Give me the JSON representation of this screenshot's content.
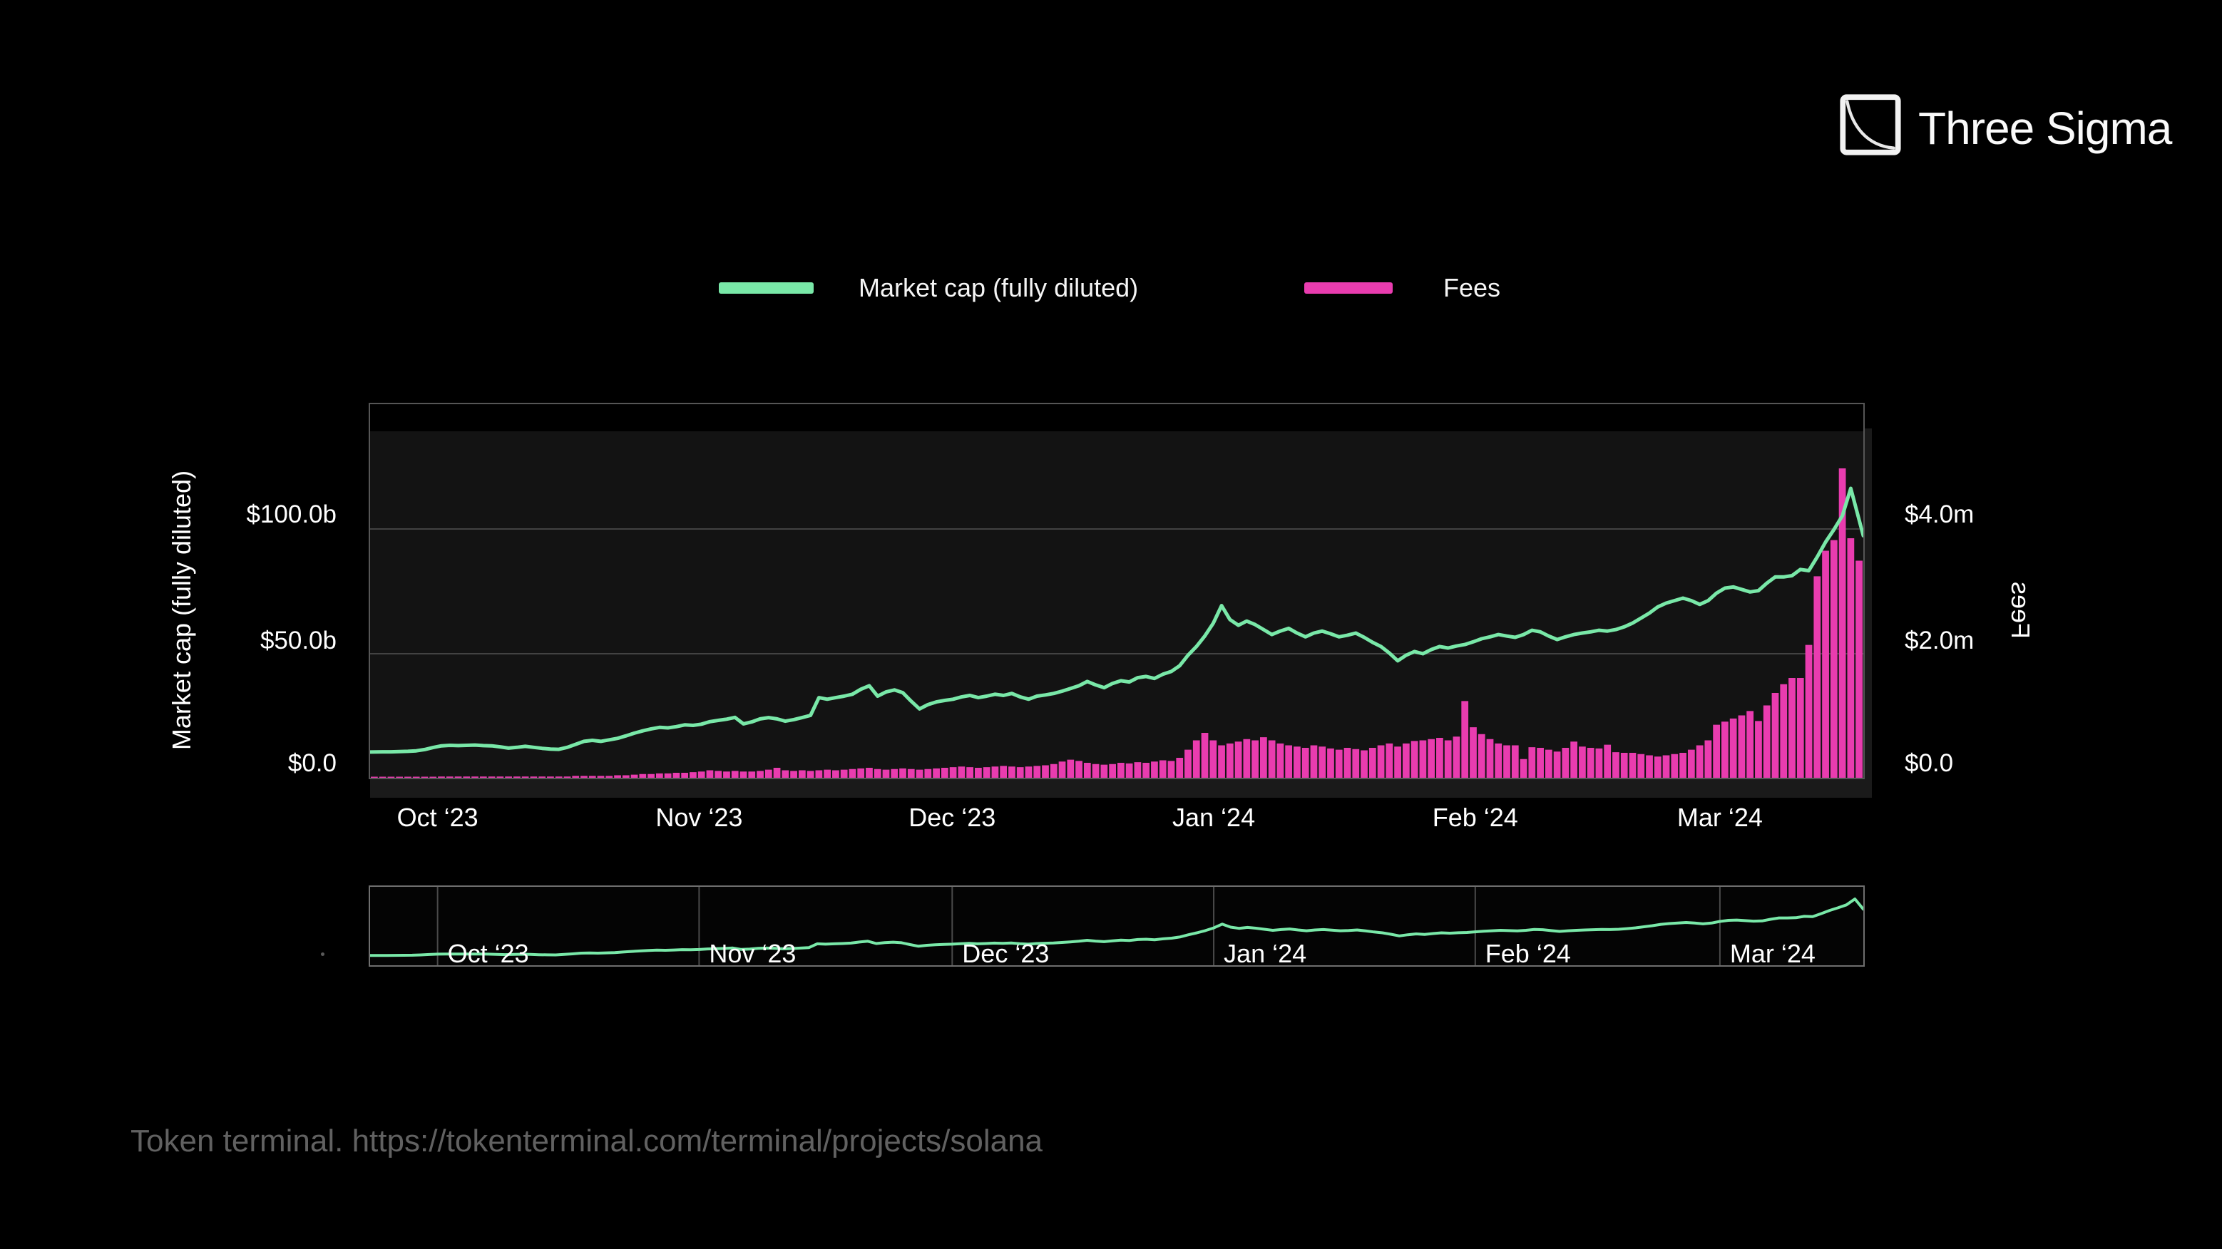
{
  "page": {
    "background": "#000000",
    "footer_source": "Token terminal. https://tokenterminal.com/terminal/projects/solana"
  },
  "logo": {
    "text": "Three Sigma"
  },
  "legend": {
    "market_cap": {
      "label": "Market cap (fully diluted)",
      "color": "#79e8a8"
    },
    "fees": {
      "label": "Fees",
      "color": "#e93caf"
    }
  },
  "chart_data": {
    "type": "combo",
    "title": "",
    "x_months": [
      "Oct ‘23",
      "Nov ‘23",
      "Dec ‘23",
      "Jan ‘24",
      "Feb ‘24",
      "Mar ‘24"
    ],
    "x_resolution": "daily (late Sep 2023 – mid Mar 2024)",
    "month_start_day_index": [
      8,
      39,
      69,
      100,
      131,
      160
    ],
    "left_axis": {
      "title": "Market cap (fully diluted)",
      "ticks": [
        "$100.0b",
        "$50.0b",
        "$0.0"
      ],
      "tick_values_b": [
        100,
        50,
        0
      ],
      "range_b": [
        0,
        150
      ],
      "grid": true
    },
    "right_axis": {
      "title": "Fees",
      "ticks": [
        "$4.0m",
        "$2.0m",
        "$0.0"
      ],
      "tick_values_m": [
        4,
        2,
        0
      ],
      "range_m": [
        0,
        6
      ],
      "grid": true
    },
    "legend_position": "top-center",
    "series": [
      {
        "name": "Market cap (fully diluted)",
        "type": "line",
        "axis": "left",
        "unit": "$b",
        "color": "#79e8a8",
        "values": [
          10.3,
          10.4,
          10.4,
          10.5,
          10.6,
          10.8,
          11.3,
          12.1,
          12.8,
          13.0,
          12.9,
          13.0,
          13.1,
          12.9,
          12.8,
          12.4,
          11.9,
          12.2,
          12.6,
          12.2,
          11.8,
          11.5,
          11.4,
          12.2,
          13.4,
          14.6,
          15.0,
          14.6,
          15.2,
          15.8,
          16.8,
          17.9,
          18.8,
          19.6,
          20.2,
          20.0,
          20.5,
          21.2,
          21.0,
          21.5,
          22.5,
          23.0,
          23.5,
          24.2,
          21.6,
          22.4,
          23.6,
          24.1,
          23.6,
          22.7,
          23.3,
          24.1,
          25.0,
          32.1,
          31.5,
          32.1,
          32.7,
          33.5,
          35.5,
          36.9,
          32.7,
          34.4,
          35.2,
          34.1,
          30.7,
          27.6,
          29.3,
          30.4,
          31.0,
          31.5,
          32.4,
          33.0,
          32.1,
          32.7,
          33.5,
          33.0,
          33.8,
          32.4,
          31.5,
          32.7,
          33.2,
          33.8,
          34.7,
          35.8,
          36.9,
          38.6,
          37.2,
          36.1,
          37.8,
          38.9,
          38.4,
          40.1,
          40.6,
          39.8,
          41.5,
          42.6,
          44.9,
          49.1,
          52.6,
          56.8,
          61.9,
          69.0,
          63.4,
          61.1,
          62.8,
          61.4,
          59.4,
          57.4,
          58.8,
          59.9,
          58.0,
          56.5,
          58.0,
          58.8,
          57.7,
          56.5,
          57.1,
          58.0,
          56.3,
          54.3,
          52.6,
          50.0,
          46.9,
          49.1,
          50.6,
          49.7,
          51.4,
          52.6,
          52.0,
          52.8,
          53.4,
          54.5,
          55.7,
          56.5,
          57.4,
          56.8,
          56.3,
          57.4,
          59.1,
          58.5,
          56.8,
          55.4,
          56.5,
          57.4,
          58.0,
          58.5,
          59.1,
          58.8,
          59.4,
          60.5,
          62.0,
          64.0,
          66.0,
          68.5,
          70.0,
          71.0,
          72.0,
          71.0,
          69.5,
          71.0,
          74.0,
          76.0,
          76.5,
          75.5,
          74.5,
          75.0,
          78.0,
          80.5,
          80.5,
          81.0,
          83.5,
          83.0,
          88.5,
          94.5,
          99.5,
          105.0,
          116.0,
          97.0
        ]
      },
      {
        "name": "Fees",
        "type": "bar",
        "axis": "right",
        "unit": "$m",
        "color": "#e93caf",
        "values": [
          0.01,
          0.01,
          0.01,
          0.01,
          0.01,
          0.01,
          0.01,
          0.01,
          0.02,
          0.02,
          0.02,
          0.02,
          0.02,
          0.02,
          0.02,
          0.02,
          0.02,
          0.02,
          0.02,
          0.02,
          0.02,
          0.02,
          0.02,
          0.02,
          0.03,
          0.03,
          0.03,
          0.03,
          0.03,
          0.04,
          0.04,
          0.05,
          0.06,
          0.06,
          0.07,
          0.07,
          0.08,
          0.08,
          0.09,
          0.1,
          0.12,
          0.11,
          0.1,
          0.11,
          0.1,
          0.1,
          0.11,
          0.13,
          0.16,
          0.12,
          0.11,
          0.12,
          0.11,
          0.12,
          0.13,
          0.12,
          0.13,
          0.14,
          0.15,
          0.16,
          0.14,
          0.13,
          0.14,
          0.15,
          0.14,
          0.13,
          0.14,
          0.15,
          0.16,
          0.17,
          0.18,
          0.17,
          0.16,
          0.17,
          0.18,
          0.19,
          0.18,
          0.17,
          0.18,
          0.19,
          0.2,
          0.22,
          0.26,
          0.29,
          0.27,
          0.24,
          0.22,
          0.21,
          0.22,
          0.24,
          0.23,
          0.25,
          0.24,
          0.26,
          0.28,
          0.27,
          0.32,
          0.45,
          0.6,
          0.72,
          0.6,
          0.52,
          0.55,
          0.58,
          0.62,
          0.6,
          0.65,
          0.6,
          0.55,
          0.52,
          0.5,
          0.48,
          0.52,
          0.5,
          0.47,
          0.45,
          0.48,
          0.46,
          0.44,
          0.48,
          0.52,
          0.55,
          0.5,
          0.55,
          0.59,
          0.6,
          0.62,
          0.64,
          0.6,
          0.66,
          1.23,
          0.81,
          0.7,
          0.62,
          0.55,
          0.52,
          0.52,
          0.3,
          0.49,
          0.48,
          0.45,
          0.42,
          0.48,
          0.58,
          0.5,
          0.48,
          0.47,
          0.53,
          0.41,
          0.4,
          0.4,
          0.38,
          0.36,
          0.34,
          0.36,
          0.38,
          0.4,
          0.45,
          0.52,
          0.6,
          0.85,
          0.9,
          0.95,
          1.0,
          1.07,
          0.91,
          1.16,
          1.36,
          1.5,
          1.6,
          1.6,
          2.13,
          3.23,
          3.64,
          3.81,
          4.96,
          3.84,
          3.48
        ]
      }
    ],
    "navigator": {
      "months": [
        "Oct ‘23",
        "Nov ‘23",
        "Dec ‘23",
        "Jan ‘24",
        "Feb ‘24",
        "Mar ‘24"
      ],
      "shows": "Market cap (fully diluted) line over full range"
    }
  },
  "colors": {
    "plot_bg": "#131313",
    "plot_top_band": "#000000",
    "apron": "#1a1a1a",
    "gridline": "#424242",
    "plot_border": "#565656",
    "mini_border": "#6e6e6e",
    "footer_text": "#616161"
  }
}
